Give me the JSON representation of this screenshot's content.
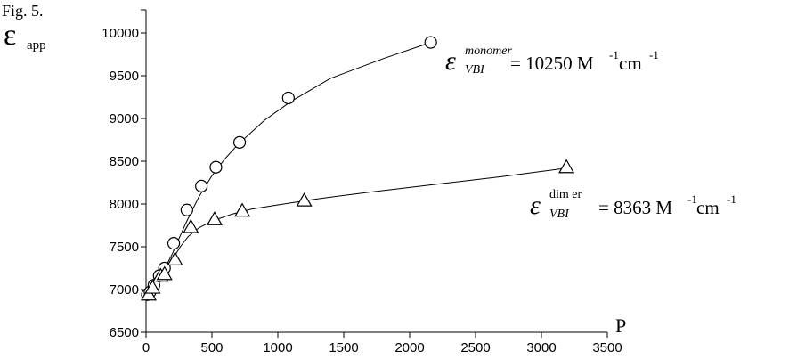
{
  "figure_label": "Fig. 5.",
  "chart_data": {
    "type": "scatter",
    "title": "",
    "ylabel_symbol": "ε",
    "ylabel_subscript": "app",
    "xlabel": "P",
    "xlim": [
      0,
      3500
    ],
    "ylim": [
      6500,
      10000
    ],
    "x_ticks": [
      0,
      500,
      1000,
      1500,
      2000,
      2500,
      3000,
      3500
    ],
    "y_ticks": [
      6500,
      7000,
      7500,
      8000,
      8500,
      9000,
      9500,
      10000
    ],
    "grid": false,
    "series": [
      {
        "marker": "circle",
        "x": [
          10,
          30,
          60,
          100,
          140,
          210,
          310,
          420,
          530,
          710,
          1080,
          2160
        ],
        "y": [
          6940,
          6970,
          7050,
          7160,
          7250,
          7540,
          7930,
          8210,
          8430,
          8720,
          9240,
          9890
        ],
        "fit_curve": [
          [
            10,
            6930
          ],
          [
            50,
            7010
          ],
          [
            100,
            7130
          ],
          [
            150,
            7270
          ],
          [
            200,
            7420
          ],
          [
            300,
            7770
          ],
          [
            400,
            8080
          ],
          [
            500,
            8330
          ],
          [
            600,
            8530
          ],
          [
            700,
            8700
          ],
          [
            900,
            8980
          ],
          [
            1100,
            9200
          ],
          [
            1400,
            9470
          ],
          [
            1800,
            9700
          ],
          [
            2160,
            9890
          ]
        ],
        "annotation": {
          "symbol": "ε",
          "superscript": "monomer",
          "subscript": "VBI",
          "text": "= 10250 M",
          "unit_exp1": "-1",
          "unit_mid": "cm",
          "unit_exp2": "-1"
        }
      },
      {
        "marker": "triangle",
        "x": [
          20,
          50,
          110,
          140,
          220,
          340,
          520,
          730,
          1200,
          3190
        ],
        "y": [
          6940,
          7020,
          7160,
          7180,
          7350,
          7730,
          7820,
          7920,
          8040,
          8430
        ],
        "fit_curve": [
          [
            10,
            6930
          ],
          [
            50,
            7010
          ],
          [
            100,
            7110
          ],
          [
            150,
            7220
          ],
          [
            200,
            7350
          ],
          [
            260,
            7500
          ],
          [
            320,
            7620
          ],
          [
            400,
            7720
          ],
          [
            500,
            7800
          ],
          [
            650,
            7880
          ],
          [
            800,
            7940
          ],
          [
            1000,
            7990
          ],
          [
            1300,
            8060
          ],
          [
            1700,
            8140
          ],
          [
            2200,
            8230
          ],
          [
            2700,
            8320
          ],
          [
            3190,
            8420
          ]
        ],
        "annotation": {
          "symbol": "ε",
          "superscript": "dim er",
          "subscript": "VBI",
          "text": "= 8363 M",
          "unit_exp1": "-1",
          "unit_mid": "cm",
          "unit_exp2": "-1"
        }
      }
    ]
  }
}
